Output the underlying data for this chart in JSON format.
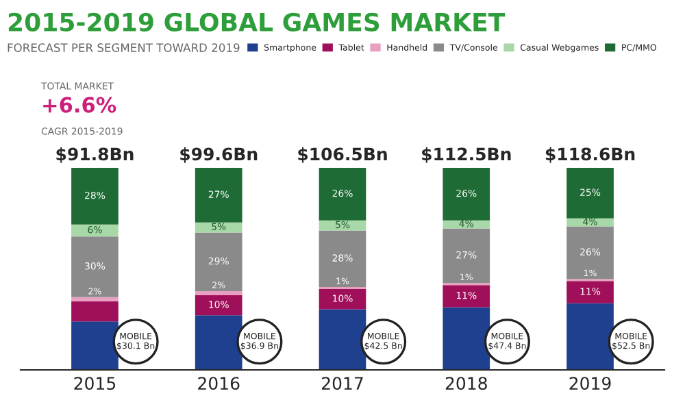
{
  "chart_data": {
    "type": "bar",
    "title": "2015-2019 GLOBAL GAMES MARKET",
    "subtitle": "FORECAST PER SEGMENT TOWARD 2019",
    "categories": [
      "2015",
      "2016",
      "2017",
      "2018",
      "2019"
    ],
    "stacked": true,
    "legend": "top right",
    "ylim": [
      0,
      100
    ],
    "series": [
      {
        "name": "Smartphone",
        "color": "#1f3f8f",
        "values": [
          24,
          27,
          30,
          31,
          33
        ],
        "value_labels": [
          null,
          null,
          null,
          null,
          null
        ]
      },
      {
        "name": "Tablet",
        "color": "#a0105a",
        "values": [
          10,
          10,
          10,
          11,
          11
        ],
        "value_labels": [
          null,
          "10%",
          "10%",
          "11%",
          "11%"
        ]
      },
      {
        "name": "Handheld",
        "color": "#e8a0c0",
        "values": [
          2,
          2,
          1,
          1,
          1
        ],
        "value_labels": [
          "2%",
          "2%",
          "1%",
          "1%",
          "1%"
        ]
      },
      {
        "name": "TV/Console",
        "color": "#8a8a8a",
        "values": [
          30,
          29,
          28,
          27,
          26
        ],
        "value_labels": [
          "30%",
          "29%",
          "28%",
          "27%",
          "26%"
        ]
      },
      {
        "name": "Casual Webgames",
        "color": "#a8d8a8",
        "values": [
          6,
          5,
          5,
          4,
          4
        ],
        "value_labels": [
          "6%",
          "5%",
          "5%",
          "4%",
          "4%"
        ]
      },
      {
        "name": "PC/MMO",
        "color": "#1e6b35",
        "values": [
          28,
          27,
          26,
          26,
          25
        ],
        "value_labels": [
          "28%",
          "27%",
          "26%",
          "26%",
          "25%"
        ]
      }
    ],
    "annotations": [
      {
        "text": "$91.8Bn",
        "x": "2015",
        "y": 100
      },
      {
        "text": "$99.6Bn",
        "x": "2016",
        "y": 100
      },
      {
        "text": "$106.5Bn",
        "x": "2017",
        "y": 100
      },
      {
        "text": "$112.5Bn",
        "x": "2018",
        "y": 100
      },
      {
        "text": "$118.6Bn",
        "x": "2019",
        "y": 100
      },
      "TOTAL MARKET",
      "+6.6%",
      "CAGR 2015-2019",
      "MOBILE $30.1 Bn",
      "MOBILE $36.9 Bn",
      "MOBILE $42.5 Bn",
      "MOBILE $47.4 Bn",
      "MOBILE $52.5 Bn"
    ]
  }
}
